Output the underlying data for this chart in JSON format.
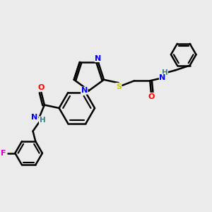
{
  "bg_color": "#ebebeb",
  "bond_color": "#000000",
  "bond_width": 1.8,
  "atom_colors": {
    "N": "#0000ff",
    "O": "#ff0000",
    "S": "#cccc00",
    "F": "#cc00cc",
    "H": "#408080"
  },
  "figsize": [
    3.0,
    3.0
  ],
  "dpi": 100,
  "xlim": [
    0,
    10
  ],
  "ylim": [
    0,
    10
  ]
}
